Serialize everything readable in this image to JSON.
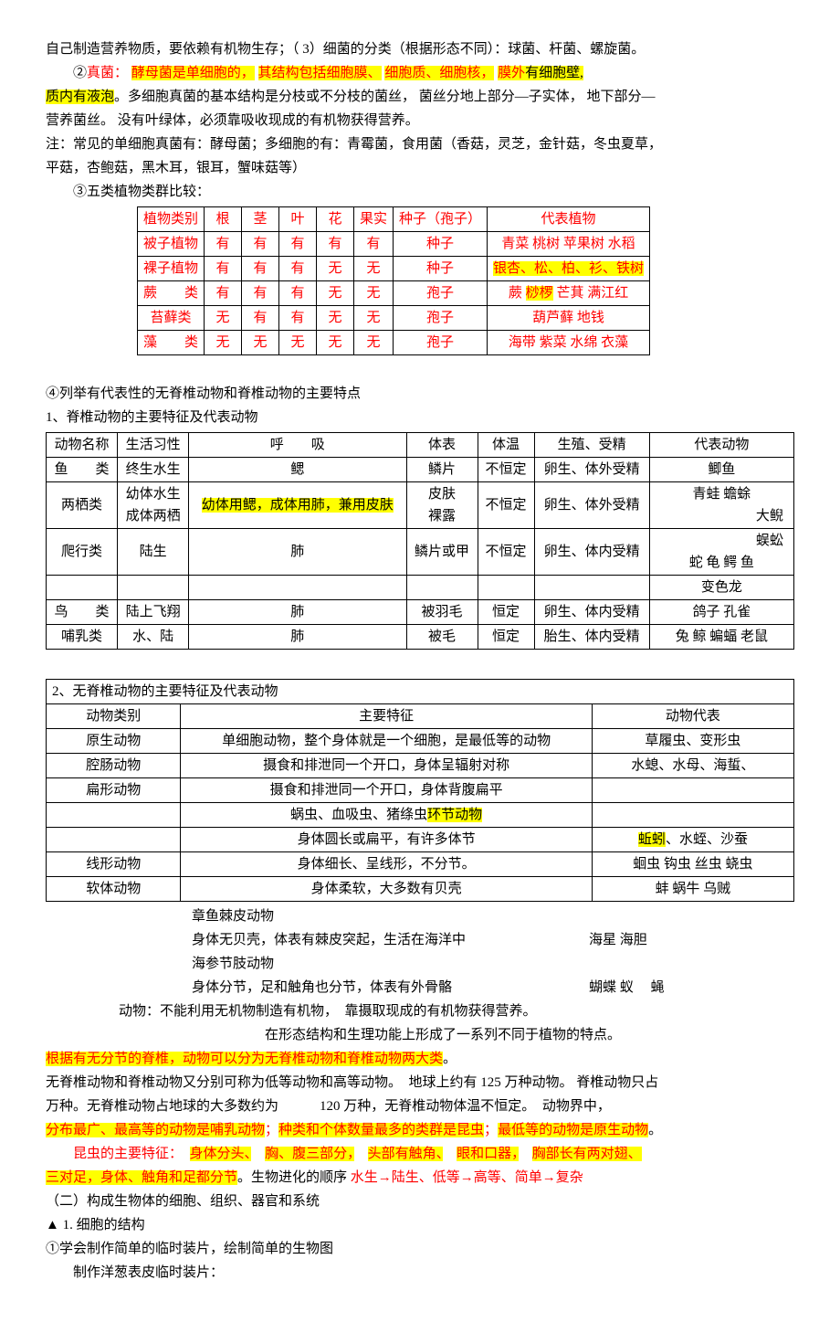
{
  "intro": {
    "line1_a": "自己制造营养物质，要依赖有机物生存；（",
    "line1_b": "3）细菌的分类（根据形态不同）：球菌、杆菌、螺旋菌。",
    "line2_pre": "②",
    "line2_fungi": "真菌：",
    "line2_a": "酵母菌是单细胞的，",
    "line2_b": "其结构包括细胞膜、",
    "line2_c": "细胞质、细胞核，",
    "line2_d": "膜外",
    "line2_e": "有细胞壁,",
    "line3_a": "质内有液泡",
    "line3_b": "。多细胞真菌的基本结构是分枝或不分枝的菌丝，",
    "line3_c": "菌丝分地上部分—子实体，",
    "line3_d": "地下部分—",
    "line4": "营养菌丝。 没有叶绿体，必须靠吸收现成的有机物获得营养。",
    "note1": "注：常见的单细胞真菌有：酵母菌；多细胞的有：青霉菌，食用菌（香菇，灵芝，金针菇，冬虫夏草，",
    "note2": "平菇，杏鲍菇，黑木耳，银耳，蟹味菇等）",
    "line5": "③五类植物类群比较："
  },
  "plantTable": {
    "headers": [
      "植物类别",
      "根",
      "茎",
      "叶",
      "花",
      "果实",
      "种子（孢子）",
      "代表植物"
    ],
    "rows": [
      {
        "cells": [
          "被子植物",
          "有",
          "有",
          "有",
          "有",
          "有",
          "种子"
        ],
        "rep": "青菜  桃树  苹果树   水稻",
        "hl": false
      },
      {
        "cells": [
          "裸子植物",
          "有",
          "有",
          "有",
          "无",
          "无",
          "种子"
        ],
        "rep": "银杏、松、柏、衫、铁树",
        "hl": true
      },
      {
        "cells": [
          "蕨　　类",
          "有",
          "有",
          "有",
          "无",
          "无",
          "孢子"
        ],
        "rep_a": "蕨  ",
        "rep_hl": "桫椤",
        "rep_b": "  芒萁  满江红"
      },
      {
        "cells": [
          "苔藓类",
          "无",
          "有",
          "有",
          "无",
          "无",
          "孢子"
        ],
        "rep": "葫芦藓   地钱",
        "hl": false
      },
      {
        "cells": [
          "藻　　类",
          "无",
          "无",
          "无",
          "无",
          "无",
          "孢子"
        ],
        "rep": "海带  紫菜  水绵  衣藻",
        "hl": false
      }
    ]
  },
  "vertIntro": {
    "l1": "④列举有代表性的无脊椎动物和脊椎动物的主要特点",
    "l2": "1、脊椎动物的主要特征及代表动物"
  },
  "vertTable": {
    "headers": [
      "动物名称",
      "生活习性",
      "呼　　吸",
      "体表",
      "体温",
      "生殖、受精",
      "代表动物"
    ],
    "rows": [
      [
        "鱼　　类",
        "终生水生",
        "鳃",
        "鳞片",
        "不恒定",
        "卵生、体外受精",
        "鲫鱼"
      ],
      [
        "两栖类",
        "幼体水生\n成体两栖",
        "__HL__幼体用鳃，成体用肺，兼用皮肤",
        "皮肤\n裸露",
        "不恒定",
        "卵生、体外受精",
        "青蛙  蟾蜍\n　　　　　　　大鲵"
      ],
      [
        "爬行类",
        "陆生",
        "肺",
        "鳞片或甲",
        "不恒定",
        "卵生、体内受精",
        "　　　　　　　蜈蚣\n蛇  龟 鳄  鱼"
      ],
      [
        "",
        "",
        "",
        "",
        "",
        "",
        "变色龙"
      ],
      [
        "鸟　　类",
        "陆上飞翔",
        "肺",
        "被羽毛",
        "恒定",
        "卵生、体内受精",
        "鸽子  孔雀"
      ],
      [
        "哺乳类",
        "水、陆",
        "肺",
        "被毛",
        "恒定",
        "胎生、体内受精",
        "兔 鲸  蝙蝠  老鼠"
      ]
    ]
  },
  "invertIntro": "2、无脊椎动物的主要特征及代表动物",
  "invertTable": {
    "headers": [
      "动物类别",
      "主要特征",
      "动物代表"
    ],
    "rows": [
      {
        "c": [
          "原生动物",
          "单细胞动物，整个身体就是一个细胞，是最低等的动物",
          "草履虫、变形虫"
        ]
      },
      {
        "c": [
          "腔肠动物",
          "摄食和排泄同一个开口，身体呈辐射对称",
          "水螅、水母、海蜇、"
        ]
      },
      {
        "c": [
          "扁形动物",
          "摄食和排泄同一个开口，身体背腹扁平",
          ""
        ]
      },
      {
        "c": [
          "",
          "蜗虫、血吸虫、猪绦虫__HL__环节动物",
          ""
        ]
      },
      {
        "c": [
          "",
          "身体圆长或扁平，有许多体节",
          "__HL__蚯蚓__N__、水蛭、沙蚕"
        ]
      },
      {
        "c": [
          "线形动物",
          "身体细长、呈线形，不分节。",
          "蛔虫  钩虫  丝虫  蛲虫"
        ]
      },
      {
        "c": [
          "软体动物",
          "身体柔软，大多数有贝壳",
          "蚌  蜗牛  乌贼"
        ]
      }
    ]
  },
  "afterInvert": [
    "章鱼棘皮动物",
    "身体无贝壳，体表有棘皮突起，生活在海洋中　　　　　　　　　海星  海胆",
    "海参节肢动物",
    "身体分节，足和触角也分节，体表有外骨骼　　　　　　　　　　蝴蝶  蚁  　蝇"
  ],
  "para": {
    "p1a": "动物：不能利用无机物制造有机物，",
    "p1b": "靠摄取现成的有机物获得营养。",
    "p2": "在形态结构和生理功能上形成了一系列不同于植物的特点。",
    "p3": "根据有无分节的脊椎，动物可以分为无脊椎动物和脊椎动物两大类",
    "p3end": "。",
    "p4a": "无脊椎动物和脊椎动物又分别可称为低等动物和高等动物。",
    "p4b": "地球上约有  125 万种动物。 脊椎动物只占",
    "p5a": "万种。无脊椎动物占地球的大多数约为",
    "p5b": "120 万种，无脊椎动物体温不恒定。",
    "p5c": "动物界中，",
    "p6a": "分布最广、最高等的动物是哺乳动物",
    "p6b": "；",
    "p6c": "种类和个体数量最多的类群是昆虫",
    "p6d": "；",
    "p6e": "最低等的动物是原生动物",
    "p6f": "。",
    "p7a": "昆虫的主要特征：",
    "p7b": "身体分头、",
    "p7c": "胸、腹三部分，",
    "p7d": "头部有触角、",
    "p7e": "眼和口器，",
    "p7f": "胸部长有两对翅、",
    "p8a": "三对足，身体、触角和足都分节",
    "p8b": "。生物进化的顺序 ",
    "p8c": "水生→陆生、低等→高等、简单→复杂",
    "p9": "（二）构成生物体的细胞、组织、器官和系统",
    "p10": "▲ 1. 细胞的结构",
    "p11": "①学会制作简单的临时装片，绘制简单的生物图",
    "p12": "制作洋葱表皮临时装片："
  }
}
